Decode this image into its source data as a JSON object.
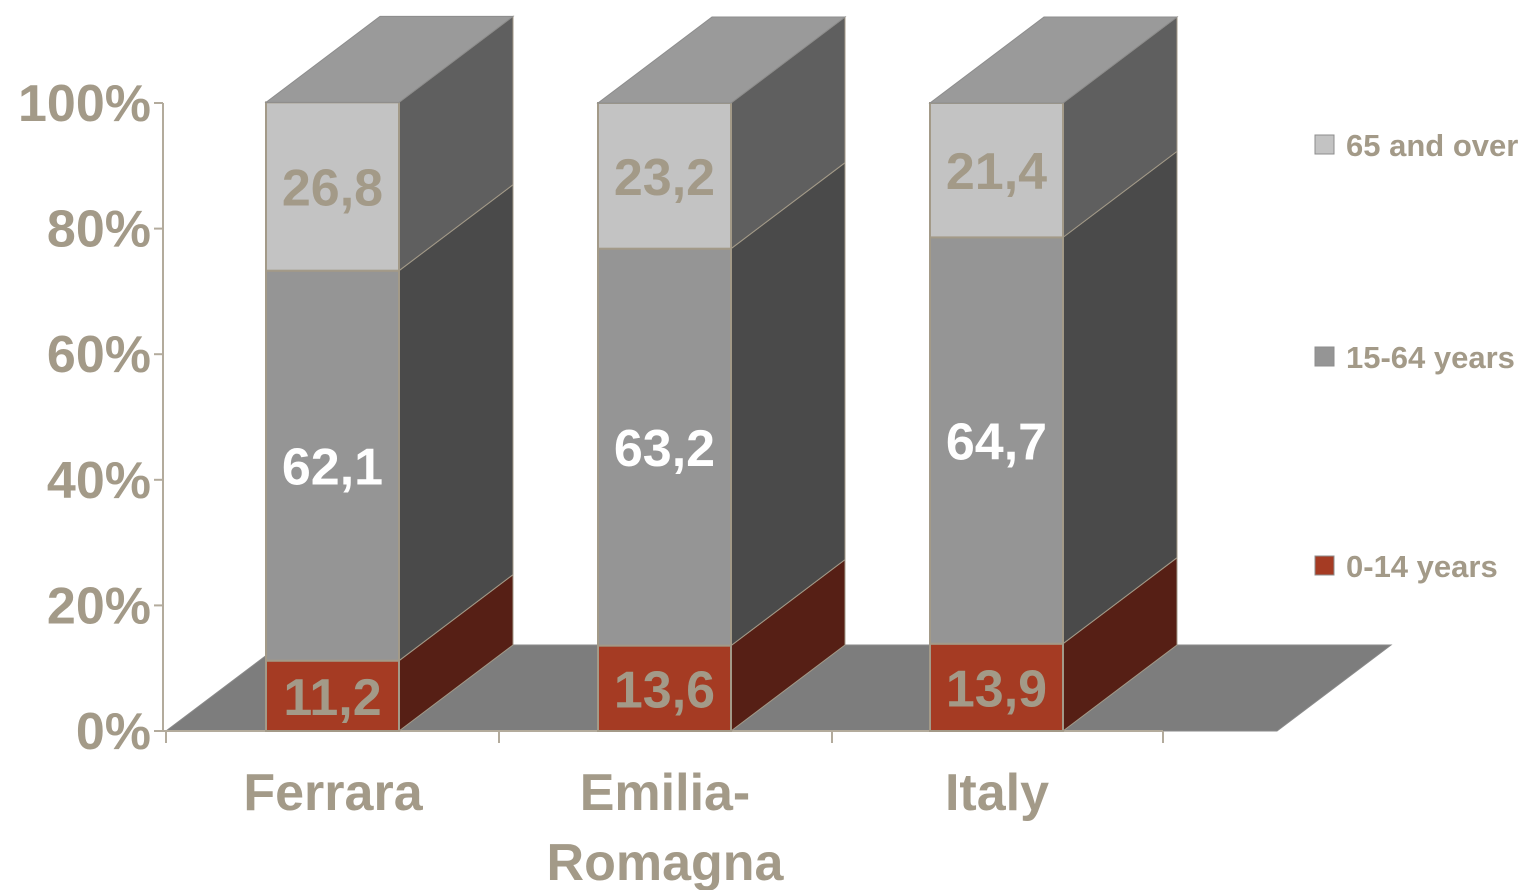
{
  "chart_data": {
    "type": "bar",
    "stacked": true,
    "three_d": true,
    "percent_stacked": true,
    "categories": [
      [
        "Ferrara"
      ],
      [
        "Emilia-",
        "Romagna"
      ],
      [
        "Italy"
      ]
    ],
    "series": [
      {
        "name": "0-14 years",
        "values": [
          11.2,
          13.6,
          13.9
        ],
        "labels": [
          "11,2",
          "13,6",
          "13,9"
        ],
        "color": "#a53b23",
        "side_color": "#561f15",
        "top_color": "#7a2a1b",
        "label_color": "#a39a88"
      },
      {
        "name": "15-64 years",
        "values": [
          62.1,
          63.2,
          64.7
        ],
        "labels": [
          "62,1",
          "63,2",
          "64,7"
        ],
        "color": "#959595",
        "side_color": "#4a4a4a",
        "top_color": "#6f6f6f",
        "label_color": "#ffffff"
      },
      {
        "name": "65 and over",
        "values": [
          26.8,
          23.2,
          21.4
        ],
        "labels": [
          "26,8",
          "23,2",
          "21,4"
        ],
        "color": "#c3c3c3",
        "side_color": "#5f5f5f",
        "top_color": "#9a9a9a",
        "label_color": "#a39a88"
      }
    ],
    "legend_order": [
      "65 and over",
      "15-64 years",
      "0-14 years"
    ],
    "y_ticks": [
      "0%",
      "20%",
      "40%",
      "60%",
      "80%",
      "100%"
    ],
    "ylim": [
      0,
      100
    ],
    "legend_position": "right",
    "colors": {
      "text": "#a39a88",
      "axis": "#b3ab9c",
      "floor": "#7d7d7d",
      "edge": "#a39a88"
    }
  }
}
